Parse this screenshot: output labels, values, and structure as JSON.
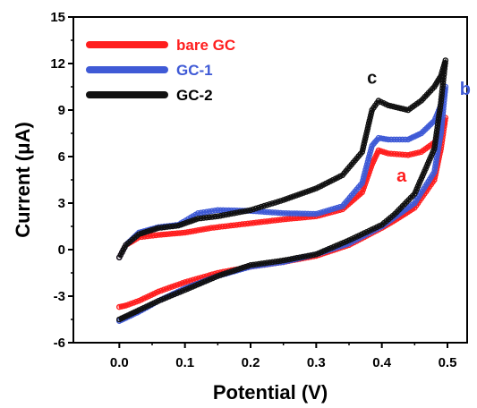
{
  "chart_data": {
    "type": "line",
    "title": "",
    "xlabel": "Potential (V)",
    "ylabel": "Current (μA)",
    "xlim": [
      -0.07,
      0.53
    ],
    "ylim": [
      -6,
      15
    ],
    "xticks": [
      "0.0",
      "0.1",
      "0.2",
      "0.3",
      "0.4",
      "0.5"
    ],
    "xtick_values": [
      0.0,
      0.1,
      0.2,
      0.3,
      0.4,
      0.5
    ],
    "yticks": [
      "-6",
      "-3",
      "0",
      "3",
      "6",
      "9",
      "12",
      "15"
    ],
    "ytick_values": [
      -6,
      -3,
      0,
      3,
      6,
      9,
      12,
      15
    ],
    "grid": false,
    "legend_position": "top-left",
    "series": [
      {
        "name": "bare GC",
        "curve_label": "a",
        "color": "#ff1e1e",
        "forward": [
          [
            0.0,
            -0.5
          ],
          [
            0.01,
            0.3
          ],
          [
            0.03,
            0.8
          ],
          [
            0.06,
            0.95
          ],
          [
            0.1,
            1.1
          ],
          [
            0.14,
            1.4
          ],
          [
            0.2,
            1.7
          ],
          [
            0.25,
            1.95
          ],
          [
            0.3,
            2.15
          ],
          [
            0.34,
            2.6
          ],
          [
            0.37,
            3.7
          ],
          [
            0.385,
            5.5
          ],
          [
            0.395,
            6.4
          ],
          [
            0.41,
            6.2
          ],
          [
            0.44,
            6.1
          ],
          [
            0.46,
            6.3
          ],
          [
            0.48,
            6.9
          ],
          [
            0.49,
            7.6
          ],
          [
            0.497,
            8.5
          ]
        ],
        "reverse": [
          [
            0.497,
            8.5
          ],
          [
            0.49,
            6.5
          ],
          [
            0.48,
            4.5
          ],
          [
            0.45,
            2.7
          ],
          [
            0.42,
            1.9
          ],
          [
            0.4,
            1.4
          ],
          [
            0.35,
            0.3
          ],
          [
            0.3,
            -0.4
          ],
          [
            0.25,
            -0.8
          ],
          [
            0.2,
            -1.1
          ],
          [
            0.15,
            -1.5
          ],
          [
            0.1,
            -2.1
          ],
          [
            0.06,
            -2.7
          ],
          [
            0.03,
            -3.3
          ],
          [
            0.01,
            -3.6
          ],
          [
            0.0,
            -3.7
          ]
        ]
      },
      {
        "name": "GC-1",
        "curve_label": "b",
        "color": "#3f5ad6",
        "forward": [
          [
            0.0,
            -0.5
          ],
          [
            0.01,
            0.3
          ],
          [
            0.03,
            1.1
          ],
          [
            0.06,
            1.45
          ],
          [
            0.09,
            1.6
          ],
          [
            0.12,
            2.35
          ],
          [
            0.15,
            2.55
          ],
          [
            0.2,
            2.5
          ],
          [
            0.25,
            2.35
          ],
          [
            0.3,
            2.3
          ],
          [
            0.34,
            2.8
          ],
          [
            0.37,
            4.3
          ],
          [
            0.385,
            6.7
          ],
          [
            0.395,
            7.2
          ],
          [
            0.41,
            7.1
          ],
          [
            0.44,
            7.1
          ],
          [
            0.46,
            7.5
          ],
          [
            0.48,
            8.3
          ],
          [
            0.49,
            9.3
          ],
          [
            0.497,
            10.5
          ]
        ],
        "reverse": [
          [
            0.497,
            10.5
          ],
          [
            0.49,
            7.5
          ],
          [
            0.48,
            5.0
          ],
          [
            0.45,
            3.0
          ],
          [
            0.42,
            2.1
          ],
          [
            0.4,
            1.5
          ],
          [
            0.35,
            0.4
          ],
          [
            0.3,
            -0.3
          ],
          [
            0.25,
            -0.8
          ],
          [
            0.2,
            -1.1
          ],
          [
            0.15,
            -1.7
          ],
          [
            0.1,
            -2.5
          ],
          [
            0.06,
            -3.3
          ],
          [
            0.03,
            -4.0
          ],
          [
            0.01,
            -4.4
          ],
          [
            0.0,
            -4.6
          ]
        ]
      },
      {
        "name": "GC-2",
        "curve_label": "c",
        "color": "#111111",
        "forward": [
          [
            0.0,
            -0.5
          ],
          [
            0.01,
            0.3
          ],
          [
            0.03,
            1.0
          ],
          [
            0.06,
            1.4
          ],
          [
            0.09,
            1.55
          ],
          [
            0.12,
            2.0
          ],
          [
            0.15,
            2.15
          ],
          [
            0.2,
            2.55
          ],
          [
            0.25,
            3.2
          ],
          [
            0.3,
            3.95
          ],
          [
            0.34,
            4.8
          ],
          [
            0.37,
            6.3
          ],
          [
            0.385,
            9.0
          ],
          [
            0.395,
            9.6
          ],
          [
            0.41,
            9.3
          ],
          [
            0.44,
            9.0
          ],
          [
            0.46,
            9.6
          ],
          [
            0.48,
            10.5
          ],
          [
            0.49,
            11.2
          ],
          [
            0.497,
            12.2
          ]
        ],
        "reverse": [
          [
            0.497,
            12.2
          ],
          [
            0.49,
            9.5
          ],
          [
            0.48,
            6.5
          ],
          [
            0.45,
            3.6
          ],
          [
            0.42,
            2.3
          ],
          [
            0.4,
            1.6
          ],
          [
            0.35,
            0.6
          ],
          [
            0.3,
            -0.3
          ],
          [
            0.25,
            -0.7
          ],
          [
            0.2,
            -1.0
          ],
          [
            0.15,
            -1.7
          ],
          [
            0.1,
            -2.6
          ],
          [
            0.06,
            -3.3
          ],
          [
            0.03,
            -3.9
          ],
          [
            0.01,
            -4.3
          ],
          [
            0.0,
            -4.5
          ]
        ]
      }
    ]
  }
}
